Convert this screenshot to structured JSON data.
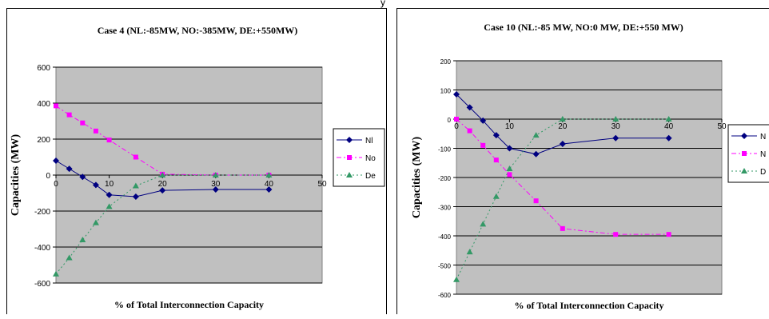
{
  "top_fragment": "y",
  "chart_data": [
    {
      "type": "line",
      "title": "Case 4 (NL:-85MW, NO:-385MW, DE:+550MW)",
      "xlabel": "% of Total Interconnection Capacity",
      "ylabel": "Capacities (MW)",
      "xlim": [
        0,
        50
      ],
      "ylim": [
        -600,
        600
      ],
      "x_ticks": [
        "0",
        "10",
        "20",
        "30",
        "40",
        "50"
      ],
      "y_ticks": [
        "-600",
        "-400",
        "-200",
        "0",
        "200",
        "400",
        "600"
      ],
      "x": [
        0,
        2.5,
        5,
        7.5,
        10,
        15,
        20,
        30,
        40
      ],
      "series": [
        {
          "name": "Nl",
          "color": "#000080",
          "marker": "diamond",
          "dash": "",
          "values": [
            80,
            35,
            -10,
            -55,
            -110,
            -120,
            -85,
            -80,
            -80
          ]
        },
        {
          "name": "No",
          "color": "#ff00ff",
          "marker": "square",
          "dash": "6,3,2,3",
          "values": [
            385,
            335,
            290,
            245,
            195,
            100,
            5,
            0,
            0
          ]
        },
        {
          "name": "De",
          "color": "#339966",
          "marker": "triangle",
          "dash": "2,3",
          "values": [
            -550,
            -460,
            -360,
            -265,
            -175,
            -60,
            0,
            0,
            0
          ]
        }
      ],
      "grid": true,
      "legend": "right",
      "plot_bg": "#c0c0c0"
    },
    {
      "type": "line",
      "title": "Case 10 (NL:-85 MW, NO:0 MW, DE:+550 MW)",
      "xlabel": "% of Total Interconnection Capacity",
      "ylabel": "Capacities (MW)",
      "xlim": [
        0,
        50
      ],
      "ylim": [
        -600,
        200
      ],
      "x_ticks": [
        "0",
        "10",
        "20",
        "30",
        "40",
        "50"
      ],
      "y_ticks": [
        "-600",
        "-500",
        "-400",
        "-300",
        "-200",
        "-100",
        "0",
        "100",
        "200"
      ],
      "x": [
        0,
        2.5,
        5,
        7.5,
        10,
        15,
        20,
        30,
        40
      ],
      "series": [
        {
          "name": "N",
          "color": "#000080",
          "marker": "diamond",
          "dash": "",
          "values": [
            85,
            40,
            -5,
            -55,
            -100,
            -120,
            -85,
            -65,
            -65
          ]
        },
        {
          "name": "N",
          "color": "#ff00ff",
          "marker": "square",
          "dash": "6,3,2,3",
          "values": [
            0,
            -40,
            -90,
            -140,
            -190,
            -280,
            -375,
            -395,
            -395
          ]
        },
        {
          "name": "D",
          "color": "#339966",
          "marker": "triangle",
          "dash": "2,3",
          "values": [
            -550,
            -455,
            -360,
            -265,
            -170,
            -55,
            0,
            0,
            0
          ]
        }
      ],
      "grid": true,
      "legend": "right",
      "plot_bg": "#c0c0c0"
    }
  ]
}
